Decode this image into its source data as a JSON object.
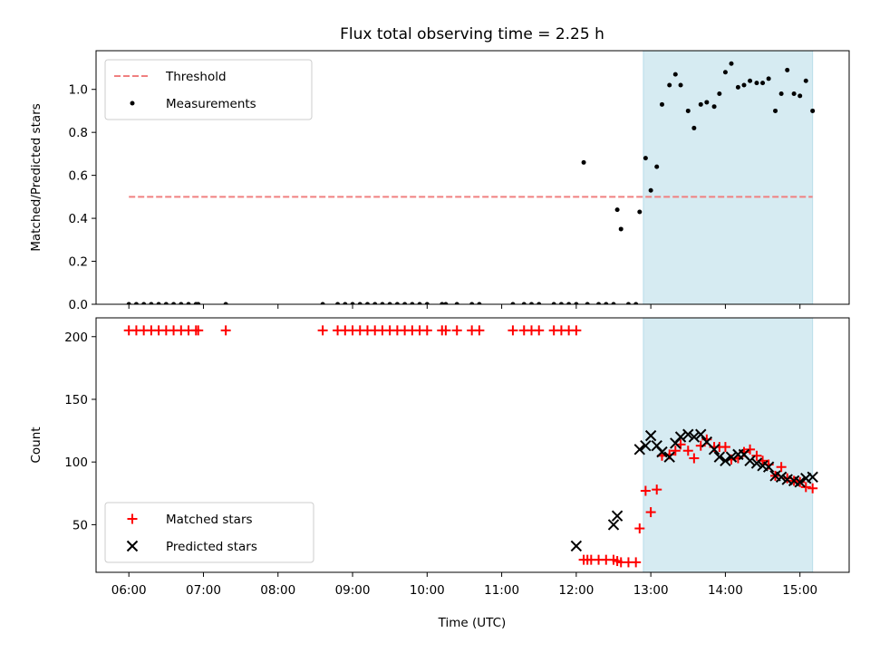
{
  "chart_data": {
    "title": "Flux total observing time = 2.25 h",
    "xlabel": "Time (UTC)",
    "x_unit": "hours UTC",
    "xlim": [
      5.56,
      15.66
    ],
    "x_ticks": [
      {
        "value": 6,
        "label": "06:00"
      },
      {
        "value": 7,
        "label": "07:00"
      },
      {
        "value": 8,
        "label": "08:00"
      },
      {
        "value": 9,
        "label": "09:00"
      },
      {
        "value": 10,
        "label": "10:00"
      },
      {
        "value": 11,
        "label": "11:00"
      },
      {
        "value": 12,
        "label": "12:00"
      },
      {
        "value": 13,
        "label": "13:00"
      },
      {
        "value": 14,
        "label": "14:00"
      },
      {
        "value": 15,
        "label": "15:00"
      }
    ],
    "observing_window": {
      "start": 12.9,
      "end": 15.17,
      "color": "#add8e6"
    },
    "panels": [
      {
        "type": "scatter",
        "ylabel": "Matched/Predicted stars",
        "ylim": [
          0,
          1.18
        ],
        "y_ticks": [
          {
            "value": 0,
            "label": "0.0"
          },
          {
            "value": 0.2,
            "label": "0.2"
          },
          {
            "value": 0.4,
            "label": "0.4"
          },
          {
            "value": 0.6,
            "label": "0.6"
          },
          {
            "value": 0.8,
            "label": "0.8"
          },
          {
            "value": 1.0,
            "label": "1.0"
          }
        ],
        "legend": {
          "position": "top-left",
          "entries": [
            "Threshold",
            "Measurements"
          ]
        },
        "threshold": {
          "name": "Threshold",
          "value": 0.5,
          "x_range": [
            6.0,
            15.17
          ],
          "color": "#f08080",
          "style": "dashed"
        },
        "measurements": {
          "name": "Measurements",
          "color": "#000000",
          "x": [
            6.0,
            6.1,
            6.2,
            6.3,
            6.4,
            6.5,
            6.6,
            6.7,
            6.8,
            6.9,
            6.93,
            7.3,
            8.6,
            8.8,
            8.9,
            9.0,
            9.1,
            9.2,
            9.3,
            9.4,
            9.5,
            9.6,
            9.7,
            9.8,
            9.9,
            10.0,
            10.2,
            10.25,
            10.4,
            10.6,
            10.7,
            11.15,
            11.3,
            11.4,
            11.5,
            11.7,
            11.8,
            11.9,
            12.0,
            12.1,
            12.15,
            12.3,
            12.4,
            12.5,
            12.55,
            12.6,
            12.7,
            12.8,
            12.85,
            12.93,
            13.0,
            13.08,
            13.15,
            13.25,
            13.33,
            13.4,
            13.5,
            13.58,
            13.67,
            13.75,
            13.85,
            13.92,
            14.0,
            14.08,
            14.17,
            14.25,
            14.33,
            14.42,
            14.5,
            14.58,
            14.67,
            14.75,
            14.83,
            14.92,
            15.0,
            15.08,
            15.17
          ],
          "y": [
            0,
            0,
            0,
            0,
            0,
            0,
            0,
            0,
            0,
            0,
            0,
            0,
            0,
            0,
            0,
            0,
            0,
            0,
            0,
            0,
            0,
            0,
            0,
            0,
            0,
            0,
            0,
            0,
            0,
            0,
            0,
            0,
            0,
            0,
            0,
            0,
            0,
            0,
            0,
            0.66,
            0,
            0,
            0,
            0,
            0.44,
            0.35,
            0,
            0,
            0.43,
            0.68,
            0.53,
            0.64,
            0.93,
            1.02,
            1.07,
            1.02,
            0.9,
            0.82,
            0.93,
            0.94,
            0.92,
            0.98,
            1.08,
            1.12,
            1.01,
            1.02,
            1.04,
            1.03,
            1.03,
            1.05,
            0.9,
            0.98,
            1.09,
            0.98,
            0.97,
            1.04,
            0.9
          ]
        }
      },
      {
        "type": "scatter",
        "ylabel": "Count",
        "ylim": [
          12,
          215
        ],
        "y_ticks": [
          {
            "value": 50,
            "label": "50"
          },
          {
            "value": 100,
            "label": "100"
          },
          {
            "value": 150,
            "label": "150"
          },
          {
            "value": 200,
            "label": "200"
          }
        ],
        "legend": {
          "position": "bottom-left",
          "entries": [
            "Matched stars",
            "Predicted stars"
          ]
        },
        "series": [
          {
            "name": "Matched stars",
            "marker": "plus",
            "color": "#ff0000",
            "x": [
              6.0,
              6.1,
              6.2,
              6.3,
              6.4,
              6.5,
              6.6,
              6.7,
              6.8,
              6.9,
              6.93,
              7.3,
              8.6,
              8.8,
              8.9,
              9.0,
              9.1,
              9.2,
              9.3,
              9.4,
              9.5,
              9.6,
              9.7,
              9.8,
              9.9,
              10.0,
              10.2,
              10.25,
              10.4,
              10.6,
              10.7,
              11.15,
              11.3,
              11.4,
              11.5,
              11.7,
              11.8,
              11.9,
              12.0,
              12.1,
              12.15,
              12.2,
              12.3,
              12.4,
              12.5,
              12.55,
              12.6,
              12.7,
              12.8,
              12.85,
              12.93,
              13.0,
              13.08,
              13.15,
              13.25,
              13.33,
              13.4,
              13.5,
              13.58,
              13.67,
              13.75,
              13.85,
              13.92,
              14.0,
              14.08,
              14.17,
              14.25,
              14.33,
              14.42,
              14.5,
              14.58,
              14.67,
              14.75,
              14.83,
              14.92,
              15.0,
              15.08,
              15.17
            ],
            "y": [
              205,
              205,
              205,
              205,
              205,
              205,
              205,
              205,
              205,
              205,
              205,
              205,
              205,
              205,
              205,
              205,
              205,
              205,
              205,
              205,
              205,
              205,
              205,
              205,
              205,
              205,
              205,
              205,
              205,
              205,
              205,
              205,
              205,
              205,
              205,
              205,
              205,
              205,
              205,
              22,
              22,
              22,
              22,
              22,
              22,
              21,
              20,
              20,
              20,
              47,
              77,
              60,
              78,
              105,
              106,
              109,
              114,
              109,
              103,
              113,
              118,
              112,
              112,
              112,
              102,
              103,
              108,
              110,
              105,
              101,
              98,
              89,
              96,
              87,
              85,
              84,
              80,
              79
            ]
          },
          {
            "name": "Predicted stars",
            "marker": "x",
            "color": "#000000",
            "x": [
              12.0,
              12.5,
              12.55,
              12.85,
              12.93,
              13.0,
              13.08,
              13.15,
              13.25,
              13.33,
              13.4,
              13.5,
              13.58,
              13.67,
              13.75,
              13.85,
              13.92,
              14.0,
              14.08,
              14.17,
              14.25,
              14.33,
              14.42,
              14.5,
              14.58,
              14.67,
              14.75,
              14.83,
              14.92,
              15.0,
              15.08,
              15.17
            ],
            "y": [
              33,
              50,
              57,
              110,
              113,
              121,
              113,
              108,
              104,
              115,
              120,
              122,
              120,
              122,
              116,
              110,
              104,
              101,
              104,
              106,
              106,
              101,
              99,
              97,
              96,
              89,
              88,
              86,
              85,
              84,
              87,
              88
            ]
          }
        ]
      }
    ]
  }
}
